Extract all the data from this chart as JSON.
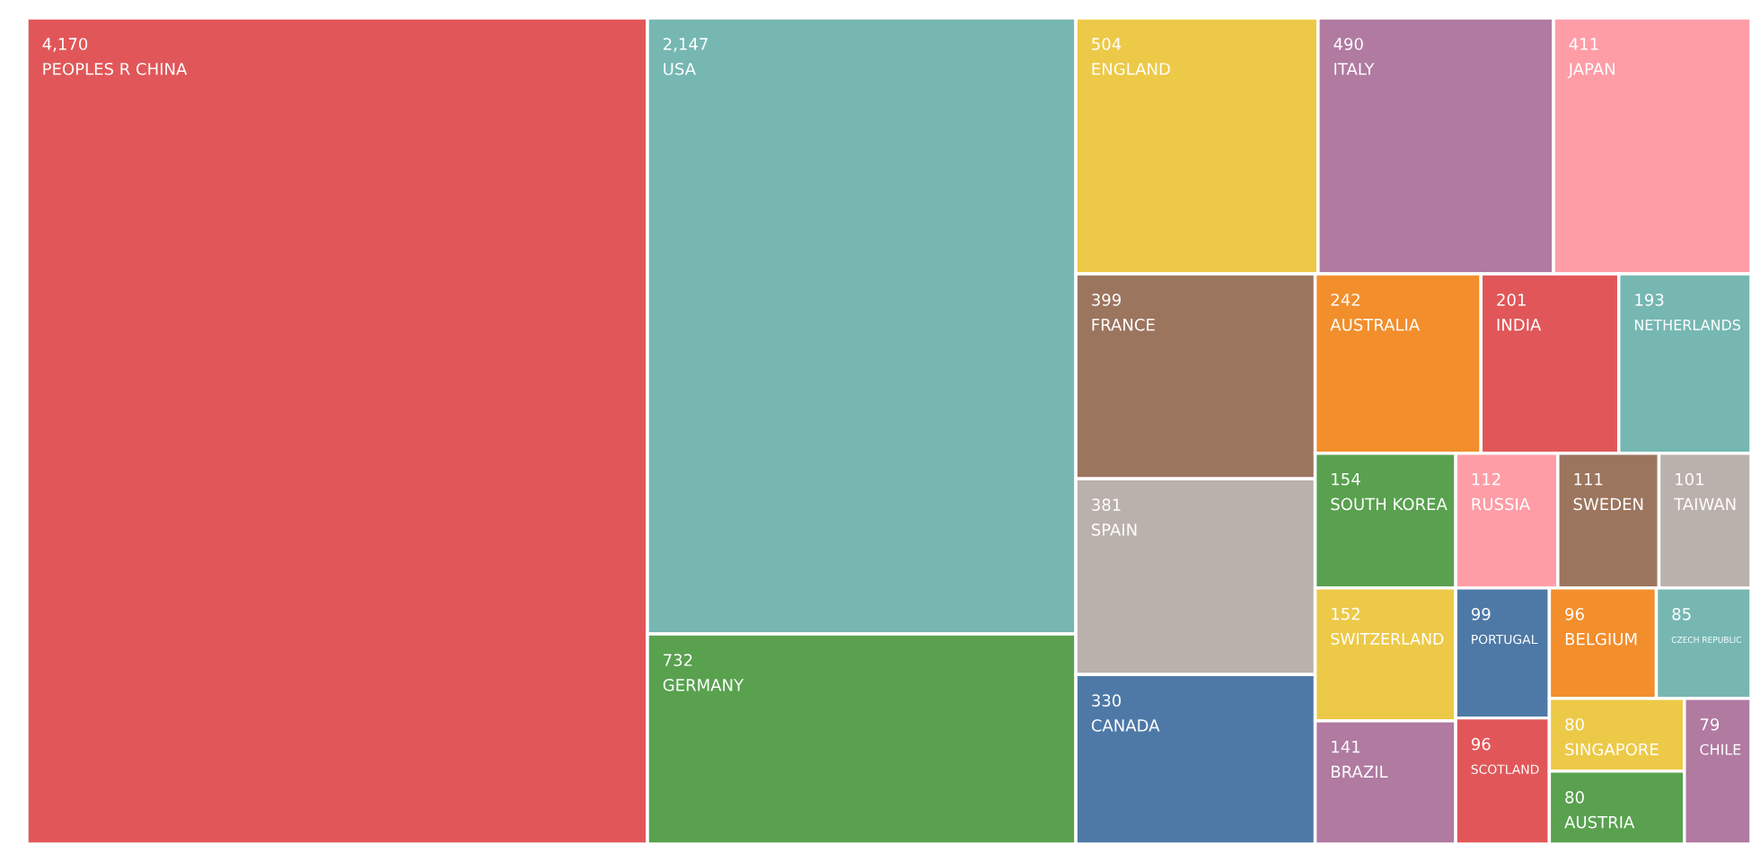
{
  "chart_data": {
    "type": "other",
    "categories": [
      "PEOPLES R CHINA",
      "USA",
      "GERMANY",
      "ENGLAND",
      "ITALY",
      "JAPAN",
      "FRANCE",
      "SPAIN",
      "CANADA",
      "AUSTRALIA",
      "INDIA",
      "NETHERLANDS",
      "SOUTH KOREA",
      "SWITZERLAND",
      "BRAZIL",
      "RUSSIA",
      "SWEDEN",
      "TAIWAN",
      "PORTUGAL",
      "SCOTLAND",
      "BELGIUM",
      "CZECH REPUBLIC",
      "SINGAPORE",
      "AUSTRIA",
      "CHILE"
    ],
    "values": [
      4170,
      2147,
      732,
      504,
      490,
      411,
      399,
      381,
      330,
      242,
      201,
      193,
      154,
      152,
      141,
      112,
      111,
      101,
      99,
      96,
      96,
      85,
      80,
      80,
      79
    ],
    "value_labels": [
      "4,170",
      "2,147",
      "732",
      "504",
      "490",
      "411",
      "399",
      "381",
      "330",
      "242",
      "201",
      "193",
      "154",
      "152",
      "141",
      "112",
      "111",
      "101",
      "99",
      "96",
      "96",
      "85",
      "80",
      "80",
      "79"
    ],
    "colors": [
      "#e15759",
      "#76b7b2",
      "#59a14f",
      "#edc948",
      "#b07aa1",
      "#ff9da7",
      "#9c755f",
      "#bab0ac",
      "#4e79a7",
      "#f28e2b",
      "#e15759",
      "#76b7b2",
      "#59a14f",
      "#edc948",
      "#b07aa1",
      "#ff9da7",
      "#9c755f",
      "#bab0ac",
      "#4e79a7",
      "#e15759",
      "#f28e2b",
      "#76b7b2",
      "#edc948",
      "#59a14f",
      "#b07aa1"
    ]
  }
}
